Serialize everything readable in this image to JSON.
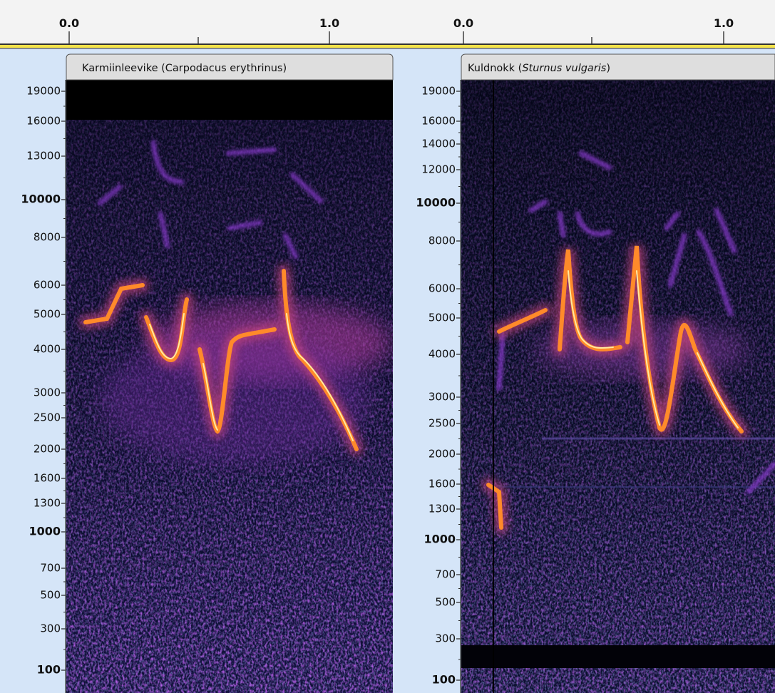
{
  "tracks": [
    {
      "title": [
        "Karmiinleevike (Carpodacus erythrinus)"
      ],
      "time_labels": [
        "0.0",
        "1.0"
      ],
      "freq_labels": [
        19000,
        16000,
        13000,
        10000,
        8000,
        6000,
        5000,
        4000,
        3000,
        2500,
        2000,
        1600,
        1300,
        1000,
        700,
        500,
        300,
        100
      ]
    },
    {
      "title": [
        "Kuldnokk (",
        "Sturnus vulgaris",
        ")"
      ],
      "time_labels": [
        "0.0",
        "1.0"
      ],
      "freq_labels": [
        19000,
        16000,
        14000,
        12000,
        10000,
        8000,
        6000,
        5000,
        4000,
        3000,
        2500,
        2000,
        1600,
        1300,
        1000,
        700,
        500,
        300,
        100
      ]
    }
  ]
}
